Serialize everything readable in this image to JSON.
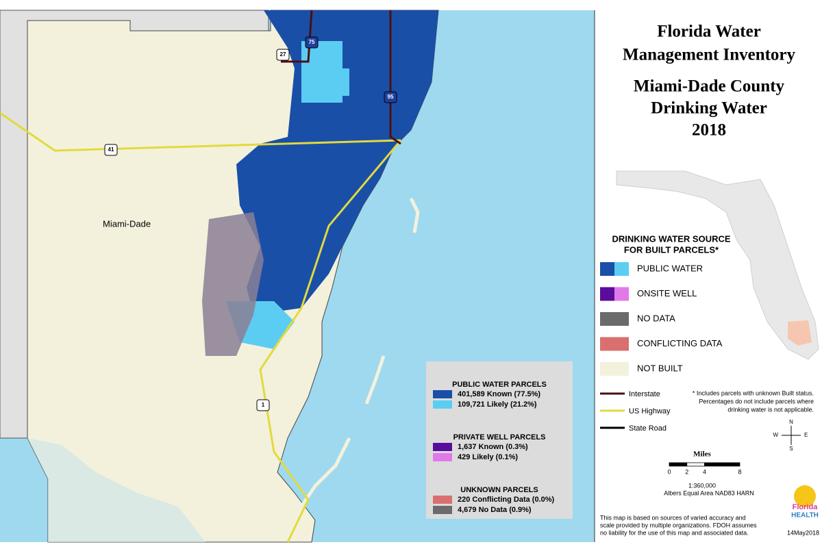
{
  "header": {
    "title": [
      "Florida Water",
      "Management Inventory"
    ],
    "subtitle": [
      "Miami-Dade County",
      "Drinking Water",
      "2018"
    ]
  },
  "map": {
    "county_label": "Miami-Dade",
    "shields": [
      75,
      95,
      27,
      41,
      1
    ]
  },
  "legend": {
    "heading": [
      "DRINKING WATER SOURCE",
      "FOR BUILT PARCELS*"
    ],
    "items": [
      {
        "label": "PUBLIC WATER",
        "colors": [
          "#1a4fa8",
          "#5ccdf2"
        ]
      },
      {
        "label": "ONSITE WELL",
        "colors": [
          "#5a0d9c",
          "#e07ae8"
        ]
      },
      {
        "label": "NO DATA",
        "colors": [
          "#6b6b6b",
          "#6b6b6b"
        ]
      },
      {
        "label": "CONFLICTING DATA",
        "colors": [
          "#d9706f",
          "#d9706f"
        ]
      },
      {
        "label": "NOT BUILT",
        "colors": [
          "#f3f1dc",
          "#f3f1dc"
        ]
      }
    ]
  },
  "roads": [
    {
      "label": "Interstate",
      "color": "#4a0f12"
    },
    {
      "label": "US Highway",
      "color": "#e2da3c"
    },
    {
      "label": "State Road",
      "color": "#000000"
    }
  ],
  "footnote": [
    "* Includes parcels with unknown Built status.",
    "Percentages do not include parcels where",
    "drinking water is not applicable."
  ],
  "compass": {
    "n": "N",
    "s": "S",
    "e": "E",
    "w": "W"
  },
  "scale": {
    "title": "Miles",
    "ticks": [
      0,
      2,
      4,
      8
    ],
    "ratio": "1:360,000",
    "projection": "Albers Equal Area NAD83 HARN"
  },
  "logo": [
    "Florida",
    "HEALTH"
  ],
  "disclaimer": [
    "This map is based on sources of varied accuracy and",
    "scale provided by multiple organizations. FDOH assumes",
    "no liability for the use of this map and associated data."
  ],
  "date": "14May2018",
  "stats": {
    "groups": [
      {
        "heading": "PUBLIC WATER PARCELS",
        "rows": [
          {
            "label": "401,589 Known (77.5%)",
            "color": "#1a4fa8"
          },
          {
            "label": "109,721 Likely (21.2%)",
            "color": "#5ccdf2"
          }
        ]
      },
      {
        "heading": "PRIVATE WELL PARCELS",
        "rows": [
          {
            "label": "1,637 Known (0.3%)",
            "color": "#5a0d9c"
          },
          {
            "label": "429 Likely (0.1%)",
            "color": "#e07ae8"
          }
        ]
      },
      {
        "heading": "UNKNOWN PARCELS",
        "rows": [
          {
            "label": "220 Conflicting Data (0.0%)",
            "color": "#d9706f"
          },
          {
            "label": "4,679 No Data (0.9%)",
            "color": "#6b6b6b"
          }
        ]
      }
    ]
  }
}
